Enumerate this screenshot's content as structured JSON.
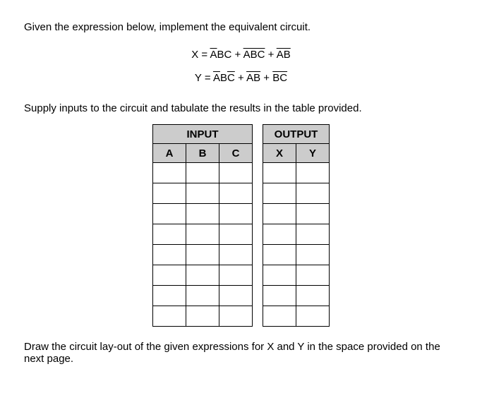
{
  "text": {
    "intro": "Given the expression below, implement the equivalent circuit.",
    "supply": "Supply inputs to the circuit and tabulate the results in the table provided.",
    "footer": "Draw the circuit lay-out of the given expressions for X and Y in the space provided on the next page."
  },
  "equations": {
    "x": {
      "lhs": "X = ",
      "t1": "A",
      "t2": "BC + ",
      "t3": "ABC",
      "t4": " + ",
      "t5": "AB"
    },
    "y": {
      "lhs": "Y = ",
      "t1": "A",
      "t2": "B",
      "t3": "C",
      "t4": " + ",
      "t5": "AB",
      "t6": " + ",
      "t7": "BC"
    }
  },
  "table": {
    "input_header": "INPUT",
    "output_header": "OUTPUT",
    "cols_in": {
      "a": "A",
      "b": "B",
      "c": "C"
    },
    "cols_out": {
      "x": "X",
      "y": "Y"
    },
    "rows": 8,
    "colors": {
      "header_bg": "#cccccc",
      "cell_bg": "#ffffff",
      "border": "#000000"
    }
  }
}
